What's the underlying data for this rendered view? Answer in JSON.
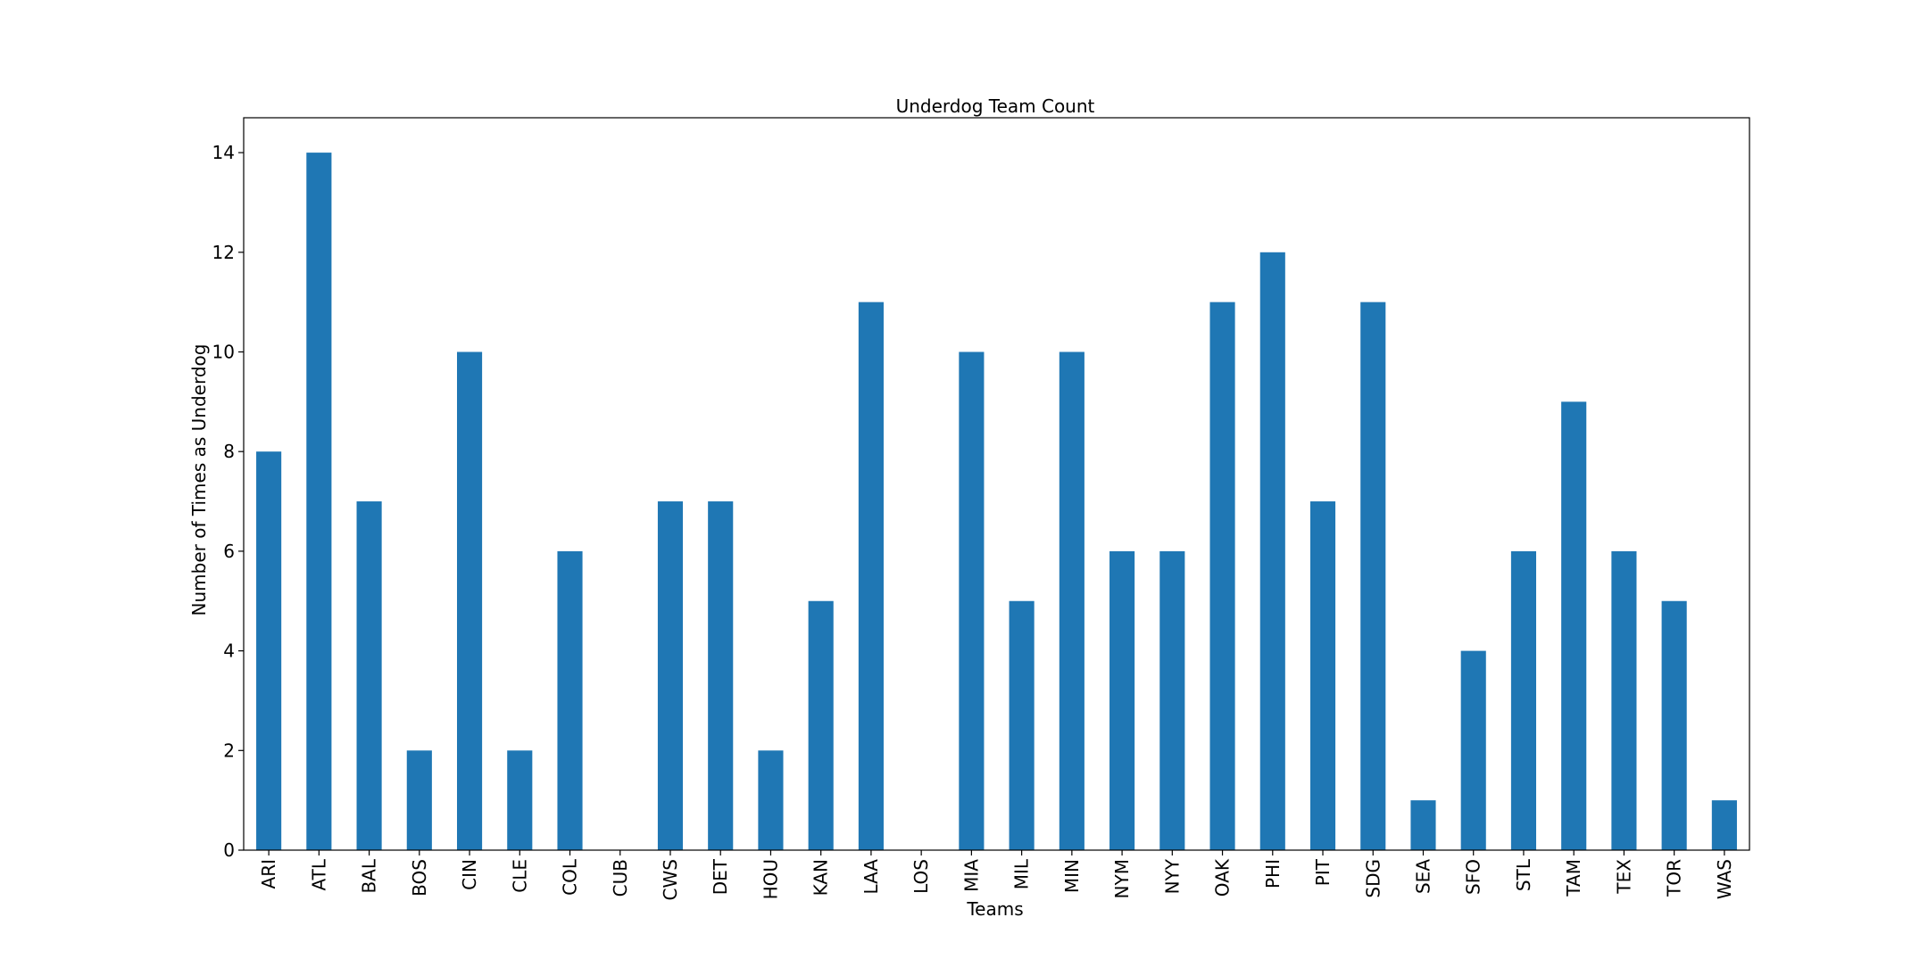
{
  "chart_data": {
    "type": "bar",
    "title": "Underdog Team Count",
    "xlabel": "Teams",
    "ylabel": "Number of Times as Underdog",
    "categories": [
      "ARI",
      "ATL",
      "BAL",
      "BOS",
      "CIN",
      "CLE",
      "COL",
      "CUB",
      "CWS",
      "DET",
      "HOU",
      "KAN",
      "LAA",
      "LOS",
      "MIA",
      "MIL",
      "MIN",
      "NYM",
      "NYY",
      "OAK",
      "PHI",
      "PIT",
      "SDG",
      "SEA",
      "SFO",
      "STL",
      "TAM",
      "TEX",
      "TOR",
      "WAS"
    ],
    "values": [
      8,
      14,
      7,
      2,
      10,
      2,
      6,
      0,
      7,
      7,
      2,
      5,
      11,
      0,
      10,
      5,
      10,
      6,
      6,
      11,
      12,
      7,
      11,
      1,
      4,
      6,
      9,
      6,
      5,
      1
    ],
    "ylim": [
      0,
      14.7
    ],
    "yticks": [
      0,
      2,
      4,
      6,
      8,
      10,
      12,
      14
    ],
    "bar_color": "#1f77b4",
    "grid": false,
    "legend": false
  }
}
